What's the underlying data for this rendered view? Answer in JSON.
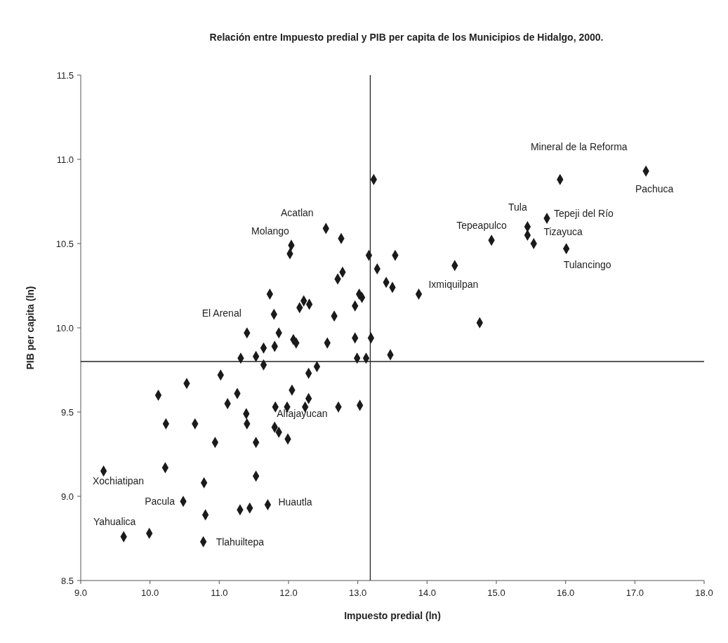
{
  "chart_data": {
    "type": "scatter",
    "title": "Relación entre Impuesto predial y PIB per capita de los Municipios de Hidalgo, 2000.",
    "xlabel": "Impuesto predial (ln)",
    "ylabel": "PIB per capita (ln)",
    "xlim": [
      9,
      18
    ],
    "ylim": [
      8.5,
      11.5
    ],
    "xticks": [
      {
        "value": 9,
        "label": "9.0"
      },
      {
        "value": 10,
        "label": "10.0"
      },
      {
        "value": 11,
        "label": "11.0"
      },
      {
        "value": 12,
        "label": "12.0"
      },
      {
        "value": 13,
        "label": "13.0"
      },
      {
        "value": 14,
        "label": "14.0"
      },
      {
        "value": 15,
        "label": "15.0"
      },
      {
        "value": 16,
        "label": "16.0"
      },
      {
        "value": 17,
        "label": "17.0"
      },
      {
        "value": 18,
        "label": "18.0"
      }
    ],
    "yticks": [
      8.5,
      {
        "value": 9,
        "label": "9.0"
      },
      9.5,
      {
        "value": 10,
        "label": "10.0"
      },
      10.5,
      {
        "value": 11,
        "label": "11.0"
      },
      11.5
    ],
    "marker": "diamond",
    "grid": false,
    "ref_lines": [
      {
        "axis": "x",
        "value": 13.18,
        "color": "#222222"
      },
      {
        "axis": "y",
        "value": 9.8,
        "color": "#222222"
      }
    ],
    "series": [
      {
        "color": "#1a1a1a",
        "x": [
          13.23,
          12.54,
          12.76,
          12.04,
          12.02,
          13.16,
          13.28,
          13.54,
          12.78,
          12.71,
          13.41,
          13.5,
          11.73,
          12.22,
          12.3,
          12.16,
          13.02,
          13.06,
          12.96,
          11.79,
          12.66,
          11.4,
          11.86,
          12.07,
          12.11,
          12.56,
          12.96,
          13.19,
          13.47,
          11.64,
          11.8,
          11.53,
          11.31,
          12.99,
          13.12,
          11.64,
          12.41,
          12.29,
          11.02,
          10.53,
          10.12,
          11.26,
          11.12,
          12.05,
          12.29,
          11.81,
          11.98,
          12.24,
          12.72,
          13.03,
          11.39,
          10.23,
          10.65,
          11.4,
          11.8,
          11.86,
          11.99,
          10.94,
          11.53,
          9.33,
          10.22,
          11.53,
          10.78,
          10.48,
          11.3,
          11.44,
          11.7,
          10.8,
          9.62,
          9.99,
          10.77,
          15.92,
          17.16,
          15.73,
          15.45,
          15.45,
          15.54,
          14.93,
          16.01,
          14.4,
          13.88,
          14.76
        ],
        "values": [
          10.88,
          10.59,
          10.53,
          10.49,
          10.44,
          10.43,
          10.35,
          10.43,
          10.33,
          10.29,
          10.27,
          10.24,
          10.2,
          10.16,
          10.14,
          10.12,
          10.2,
          10.18,
          10.13,
          10.08,
          10.07,
          9.97,
          9.97,
          9.93,
          9.91,
          9.91,
          9.94,
          9.94,
          9.84,
          9.88,
          9.89,
          9.83,
          9.82,
          9.82,
          9.82,
          9.78,
          9.77,
          9.73,
          9.72,
          9.67,
          9.6,
          9.61,
          9.55,
          9.63,
          9.58,
          9.53,
          9.53,
          9.53,
          9.53,
          9.54,
          9.49,
          9.43,
          9.43,
          9.43,
          9.41,
          9.38,
          9.34,
          9.32,
          9.32,
          9.15,
          9.17,
          9.12,
          9.08,
          8.97,
          8.92,
          8.93,
          8.95,
          8.89,
          8.76,
          8.78,
          8.73,
          10.88,
          10.93,
          10.65,
          10.6,
          10.55,
          10.5,
          10.52,
          10.47,
          10.37,
          10.2,
          10.03
        ]
      }
    ],
    "annotations": [
      {
        "text": "Mineral de la Reforma",
        "x": 15.92,
        "y": 10.88
      },
      {
        "text": "Pachuca",
        "x": 17.16,
        "y": 10.93
      },
      {
        "text": "Tula",
        "x": 15.45,
        "y": 10.6
      },
      {
        "text": "Tepeji del Río",
        "x": 15.73,
        "y": 10.65
      },
      {
        "text": "Tizayuca",
        "x": 15.45,
        "y": 10.55
      },
      {
        "text": "Tepeapulco",
        "x": 14.93,
        "y": 10.52
      },
      {
        "text": "Tulancingo",
        "x": 16.01,
        "y": 10.47
      },
      {
        "text": "Ixmiquilpan",
        "x": 13.88,
        "y": 10.2
      },
      {
        "text": "Acatlan",
        "x": 12.54,
        "y": 10.59
      },
      {
        "text": "Molango",
        "x": 12.04,
        "y": 10.49
      },
      {
        "text": "El Arenal",
        "x": 11.4,
        "y": 9.97
      },
      {
        "text": "Alfajayucan",
        "x": 11.81,
        "y": 9.53
      },
      {
        "text": "Xochiatipan",
        "x": 9.33,
        "y": 9.15
      },
      {
        "text": "Pacula",
        "x": 10.48,
        "y": 8.97
      },
      {
        "text": "Huautla",
        "x": 11.7,
        "y": 8.95
      },
      {
        "text": "Yahualica",
        "x": 9.62,
        "y": 8.76
      },
      {
        "text": "Tlahuiltepa",
        "x": 10.77,
        "y": 8.73
      }
    ]
  }
}
